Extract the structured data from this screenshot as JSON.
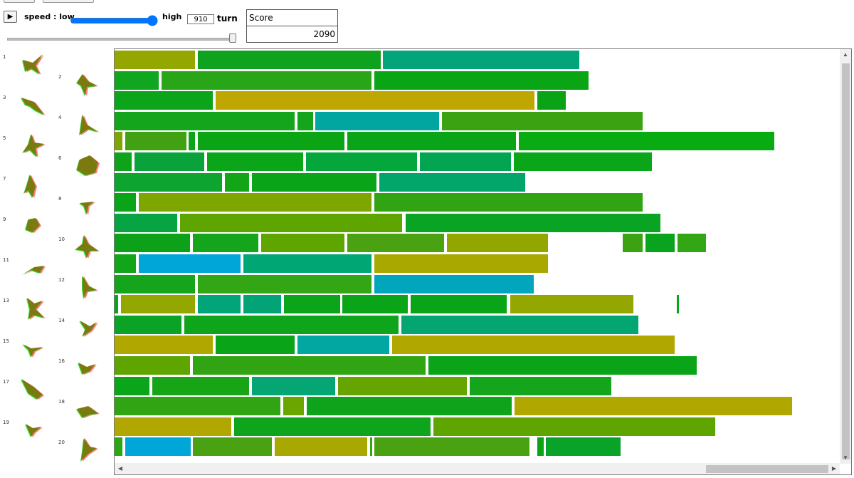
{
  "controls": {
    "play_icon": "play-icon",
    "speed_label": "speed : low",
    "speed_high_label": "high",
    "speed_value": 1.0,
    "turn_value": "910",
    "turn_label": "turn",
    "turn_slider_value": 1.0
  },
  "score": {
    "title": "Score",
    "value": "2090"
  },
  "shapes": [
    {
      "num": "1"
    },
    {
      "num": "2"
    },
    {
      "num": "3"
    },
    {
      "num": "4"
    },
    {
      "num": "5"
    },
    {
      "num": "6"
    },
    {
      "num": "7"
    },
    {
      "num": "8"
    },
    {
      "num": "9"
    },
    {
      "num": "10"
    },
    {
      "num": "11"
    },
    {
      "num": "12"
    },
    {
      "num": "13"
    },
    {
      "num": "14"
    },
    {
      "num": "15"
    },
    {
      "num": "16"
    },
    {
      "num": "17"
    },
    {
      "num": "18"
    },
    {
      "num": "19"
    },
    {
      "num": "20"
    }
  ],
  "lanes": [
    [
      [
        0,
        113,
        "#94a600"
      ],
      [
        117,
        374,
        "#0fa21e"
      ],
      [
        377,
        653,
        "#02a47a"
      ]
    ],
    [
      [
        0,
        62,
        "#11a620"
      ],
      [
        66,
        361,
        "#29a617"
      ],
      [
        365,
        666,
        "#0aa515"
      ]
    ],
    [
      [
        0,
        138,
        "#0ba41b"
      ],
      [
        142,
        590,
        "#bea700"
      ],
      [
        594,
        634,
        "#0aa315"
      ]
    ],
    [
      [
        0,
        253,
        "#14a51d"
      ],
      [
        257,
        279,
        "#14a51d"
      ],
      [
        282,
        456,
        "#02a6a1"
      ],
      [
        460,
        742,
        "#3ba212"
      ]
    ],
    [
      [
        0,
        11,
        "#7fa600"
      ],
      [
        15,
        101,
        "#41a112"
      ],
      [
        104,
        113,
        "#0ca51a"
      ],
      [
        117,
        323,
        "#0aa415"
      ],
      [
        327,
        564,
        "#0aa418"
      ],
      [
        568,
        927,
        "#08ab12"
      ]
    ],
    [
      [
        0,
        24,
        "#0fa31c"
      ],
      [
        28,
        126,
        "#0aa23b"
      ],
      [
        130,
        265,
        "#0ba51a"
      ],
      [
        269,
        425,
        "#05a73d"
      ],
      [
        429,
        557,
        "#04a552"
      ],
      [
        561,
        755,
        "#0aa518"
      ]
    ],
    [
      [
        0,
        151,
        "#0ea430"
      ],
      [
        155,
        189,
        "#12a617"
      ],
      [
        193,
        368,
        "#0aa419"
      ],
      [
        372,
        577,
        "#02a56a"
      ]
    ],
    [
      [
        0,
        30,
        "#0aa418"
      ],
      [
        34,
        361,
        "#7ea600"
      ],
      [
        365,
        742,
        "#30a412"
      ]
    ],
    [
      [
        0,
        88,
        "#07a443"
      ],
      [
        92,
        404,
        "#5ea500"
      ],
      [
        409,
        767,
        "#0aa424"
      ]
    ],
    [
      [
        0,
        106,
        "#0da11a"
      ],
      [
        110,
        202,
        "#14a51d"
      ],
      [
        206,
        323,
        "#5ea500"
      ],
      [
        327,
        463,
        "#4aa212"
      ],
      [
        467,
        609,
        "#91a700"
      ],
      [
        714,
        742,
        "#3ba212"
      ],
      [
        746,
        787,
        "#0aa31e"
      ],
      [
        791,
        831,
        "#32a614"
      ]
    ],
    [
      [
        0,
        30,
        "#12a419"
      ],
      [
        34,
        177,
        "#00a6d7"
      ],
      [
        181,
        361,
        "#00a673"
      ],
      [
        365,
        609,
        "#a8a800"
      ]
    ],
    [
      [
        0,
        113,
        "#14a51d"
      ],
      [
        117,
        361,
        "#32a614"
      ],
      [
        365,
        589,
        "#01a6bd"
      ]
    ],
    [
      [
        0,
        5,
        "#08a41a"
      ],
      [
        9,
        113,
        "#94a600"
      ],
      [
        117,
        177,
        "#01a579"
      ],
      [
        181,
        234,
        "#02a477"
      ],
      [
        238,
        317,
        "#0ca51a"
      ],
      [
        320,
        412,
        "#0aa418"
      ],
      [
        416,
        551,
        "#0aa418"
      ],
      [
        556,
        729,
        "#94a600"
      ],
      [
        790,
        793,
        "#0aa418"
      ]
    ],
    [
      [
        0,
        94,
        "#0aa325"
      ],
      [
        98,
        399,
        "#0ea41b"
      ],
      [
        403,
        736,
        "#03a670"
      ]
    ],
    [
      [
        0,
        138,
        "#b0a800"
      ],
      [
        142,
        253,
        "#0aa418"
      ],
      [
        257,
        386,
        "#02a7a1"
      ],
      [
        390,
        787,
        "#b0a800"
      ]
    ],
    [
      [
        0,
        106,
        "#5ea500"
      ],
      [
        110,
        437,
        "#30a412"
      ],
      [
        441,
        818,
        "#0aa418"
      ]
    ],
    [
      [
        0,
        49,
        "#0ba51a"
      ],
      [
        53,
        189,
        "#17a517"
      ],
      [
        193,
        310,
        "#05a673"
      ],
      [
        314,
        495,
        "#66a400"
      ],
      [
        499,
        698,
        "#15a51d"
      ]
    ],
    [
      [
        0,
        233,
        "#30a412"
      ],
      [
        237,
        266,
        "#6ba500"
      ],
      [
        270,
        558,
        "#0fa31c"
      ],
      [
        562,
        952,
        "#b0a800"
      ]
    ],
    [
      [
        0,
        164,
        "#b0a800"
      ],
      [
        168,
        444,
        "#0ea41b"
      ],
      [
        448,
        844,
        "#5ea500"
      ]
    ],
    [
      [
        0,
        11,
        "#2ca612"
      ],
      [
        15,
        107,
        "#00a6d7"
      ],
      [
        110,
        221,
        "#4aa212"
      ],
      [
        225,
        355,
        "#a8a800"
      ],
      [
        359,
        362,
        "#38a515"
      ],
      [
        365,
        583,
        "#4aa212"
      ],
      [
        594,
        603,
        "#0aa418"
      ],
      [
        606,
        711,
        "#0aa32a"
      ]
    ]
  ]
}
